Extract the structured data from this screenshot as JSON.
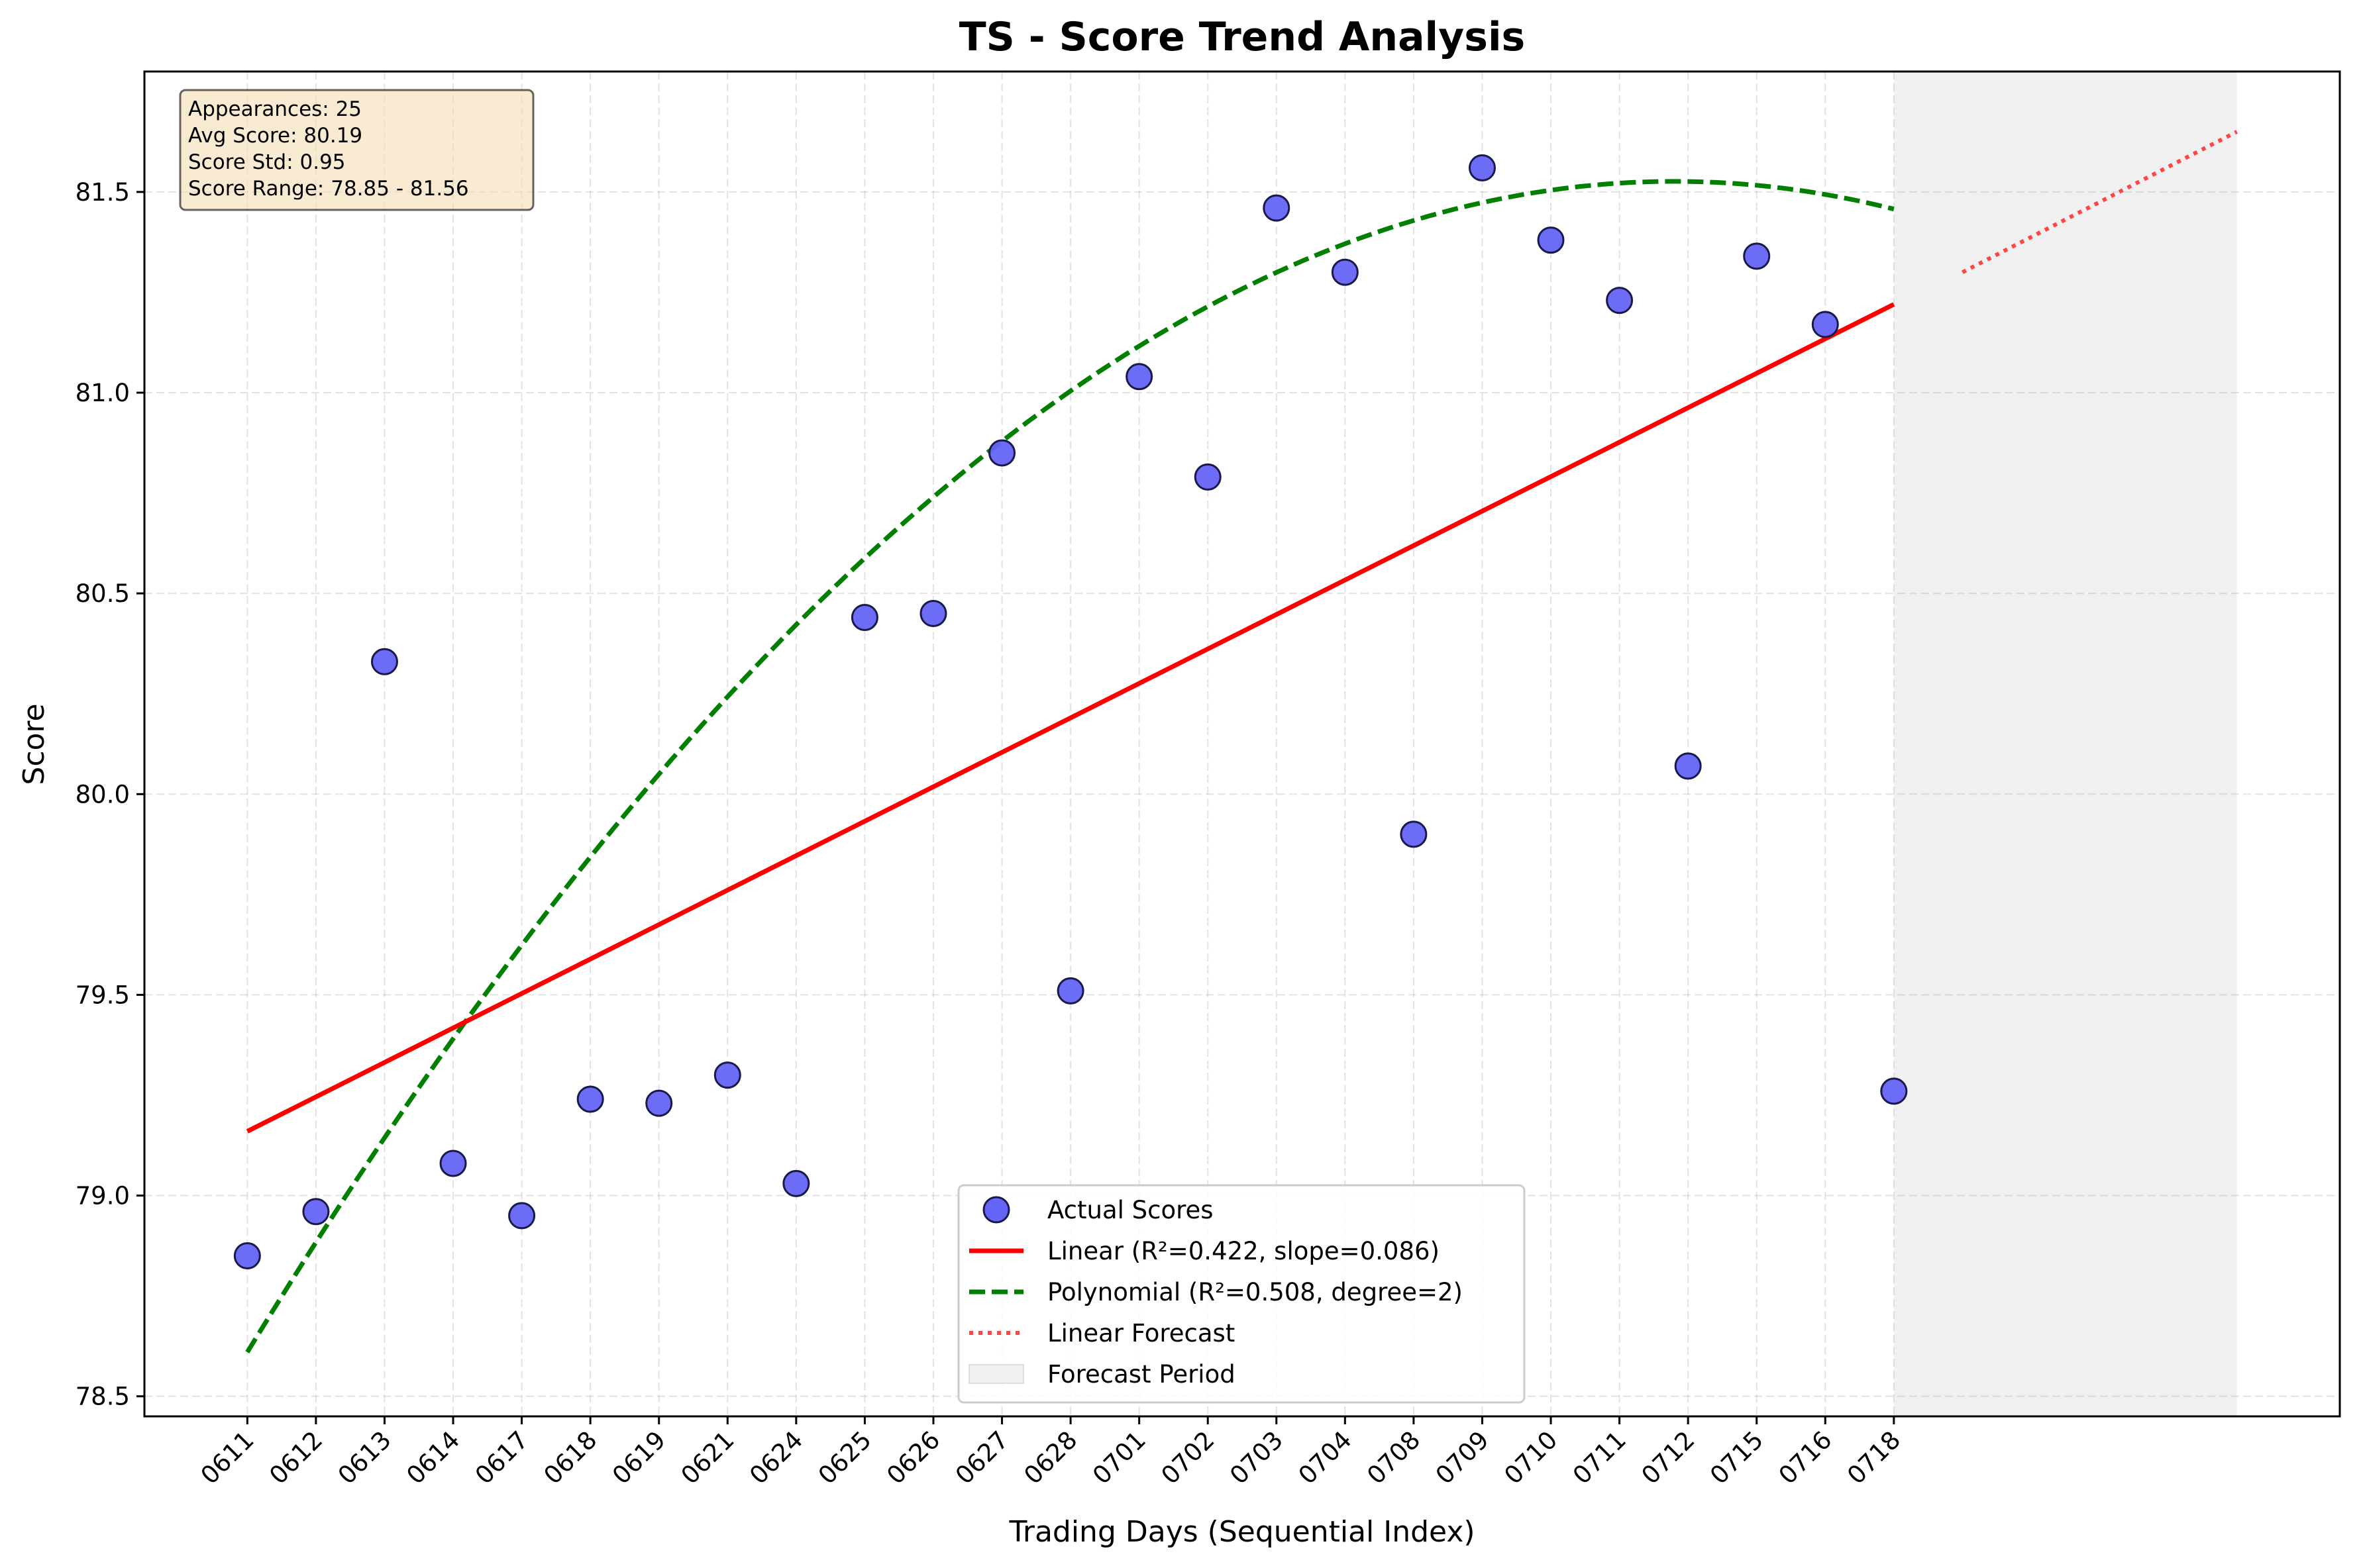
{
  "chart_data": {
    "type": "scatter",
    "title": "TS - Score Trend Analysis",
    "xlabel": "Trading Days (Sequential Index)",
    "ylabel": "Score",
    "categories": [
      "0611",
      "0612",
      "0613",
      "0614",
      "0617",
      "0618",
      "0619",
      "0621",
      "0624",
      "0625",
      "0626",
      "0627",
      "0628",
      "0701",
      "0702",
      "0703",
      "0704",
      "0708",
      "0709",
      "0710",
      "0711",
      "0712",
      "0715",
      "0716",
      "0718"
    ],
    "x_range": [
      -1.5,
      30.5
    ],
    "ylim": [
      78.45,
      81.8
    ],
    "yticks": [
      78.5,
      79.0,
      79.5,
      80.0,
      80.5,
      81.0,
      81.5
    ],
    "ytick_labels": [
      "78.5",
      "79.0",
      "79.5",
      "80.0",
      "80.5",
      "81.0",
      "81.5"
    ],
    "grid": true,
    "series": [
      {
        "name": "Actual Scores",
        "kind": "scatter",
        "color": "#6464f6",
        "x": [
          0,
          1,
          2,
          3,
          4,
          5,
          6,
          7,
          8,
          9,
          10,
          11,
          12,
          13,
          14,
          15,
          16,
          17,
          18,
          19,
          20,
          21,
          22,
          23,
          24
        ],
        "values": [
          78.85,
          78.96,
          80.33,
          79.08,
          78.95,
          79.24,
          79.23,
          79.3,
          79.03,
          80.44,
          80.45,
          80.85,
          79.51,
          81.04,
          80.79,
          81.46,
          81.3,
          79.9,
          81.56,
          81.38,
          81.23,
          80.07,
          81.34,
          81.17,
          79.26
        ]
      },
      {
        "name": "Linear (R²=0.422, slope=0.086)",
        "kind": "line",
        "color": "#ff0000",
        "style": "solid",
        "x": [
          0,
          24
        ],
        "values": [
          79.16,
          81.22
        ]
      },
      {
        "name": "Polynomial (R²=0.508, degree=2)",
        "kind": "line",
        "color": "#007f00",
        "style": "dashed",
        "poly": {
          "a": -0.00674,
          "b": 0.2804,
          "c": 78.61
        },
        "x_from": 0,
        "x_to": 24
      },
      {
        "name": "Linear Forecast",
        "kind": "line",
        "color": "#ff4444",
        "style": "dotted",
        "x": [
          25,
          29
        ],
        "values": [
          81.3,
          81.65
        ]
      }
    ],
    "forecast_period": {
      "name": "Forecast Period",
      "x_from": 24,
      "x_to": 29,
      "color": "#f0f0f0"
    },
    "legend_position": "lower-center",
    "stats_box": {
      "position": "top-left",
      "lines": [
        "Appearances: 25",
        "Avg Score: 80.19",
        "Score Std: 0.95",
        "Score Range: 78.85 - 81.56"
      ],
      "background": "#f5deb3"
    }
  }
}
